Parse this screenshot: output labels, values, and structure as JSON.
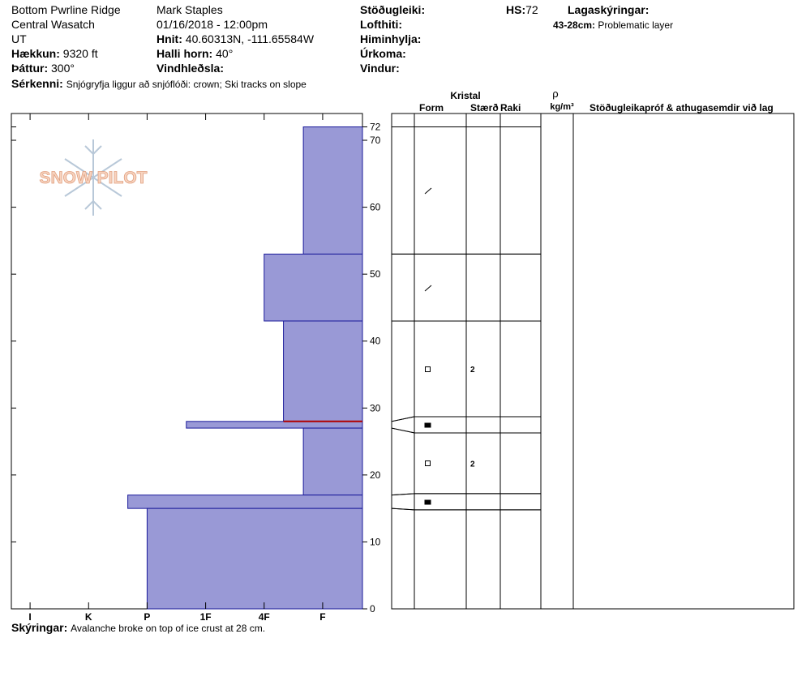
{
  "header": {
    "col1": [
      "Bottom Pwrline Ridge",
      "Central Wasatch",
      "UT"
    ],
    "elevation": {
      "label": "Hækkun:",
      "value": "9320 ft"
    },
    "aspect": {
      "label": "Þáttur:",
      "value": "300°"
    },
    "observer": "Mark Staples",
    "datetime": "01/16/2018 - 12:00pm",
    "coords": {
      "label": "Hnit:",
      "value": "40.60313N, -111.65584W"
    },
    "slope": {
      "label": "Halli horn:",
      "value": "40°"
    },
    "wind_loading": "Vindhleðsla:",
    "col3": [
      "Stöðugleiki:",
      "Lofthiti:",
      "Himinhylja:",
      "Úrkoma:",
      "Vindur:"
    ],
    "hs": {
      "label": "HS:",
      "value": "72"
    },
    "layer_notes": {
      "title": "Lagaskýringar:",
      "items": [
        {
          "range": "43-28cm:",
          "text": "Problematic layer"
        }
      ]
    },
    "features": {
      "label": "Sérkenni:",
      "value": "Snjógryfja liggur að snjóflóði: crown;  Ski tracks on slope"
    }
  },
  "logo": "SNOW PILOT",
  "table": {
    "crystal": "Kristal",
    "form": "Form",
    "size": "Stærð",
    "moisture": "Raki",
    "rho": "ρ",
    "density_unit": "kg/m³",
    "comments": "Stöðugleikapróf & athugasemdir við lag"
  },
  "footer": {
    "label": "Skýringar:",
    "value": "Avalanche broke on top of ice crust at 28 cm."
  },
  "chart_data": {
    "type": "snow-profile",
    "color": "#9999d6",
    "edge_color": "#1a1a9a",
    "problem_color": "#b00000",
    "problem_depth": 28,
    "xlim": [
      6.32,
      0.32
    ],
    "xticks": [
      {
        "value": 6,
        "label": "I"
      },
      {
        "value": 5,
        "label": "K"
      },
      {
        "value": 4,
        "label": "P"
      },
      {
        "value": 3,
        "label": "1F"
      },
      {
        "value": 2,
        "label": "4F"
      },
      {
        "value": 1,
        "label": "F"
      }
    ],
    "ylim": [
      0,
      74
    ],
    "yticks": [
      0,
      10,
      20,
      30,
      40,
      50,
      60,
      70,
      72
    ],
    "layers": [
      {
        "top": 72,
        "bottom": 53,
        "hardness": 1.33
      },
      {
        "top": 53,
        "bottom": 43,
        "hardness": 2
      },
      {
        "top": 43,
        "bottom": 28,
        "hardness": 1.67,
        "grain_size": 2
      },
      {
        "top": 28,
        "bottom": 27,
        "hardness": 3.33
      },
      {
        "top": 27,
        "bottom": 17,
        "hardness": 1.33,
        "grain_size": 2
      },
      {
        "top": 17,
        "bottom": 15,
        "hardness": 4.33
      },
      {
        "top": 15,
        "bottom": 0,
        "hardness": 4
      }
    ]
  }
}
